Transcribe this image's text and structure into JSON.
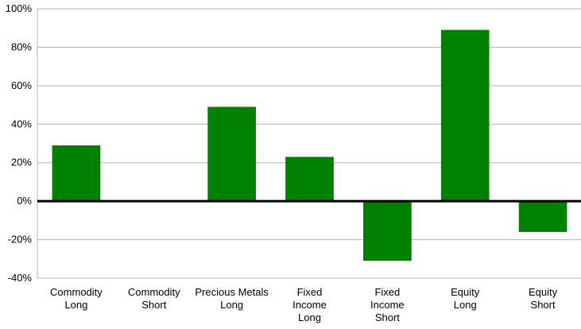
{
  "chart_data": {
    "type": "bar",
    "categories": [
      [
        "Commodity",
        "Long"
      ],
      [
        "Commodity",
        "Short"
      ],
      [
        "Precious Metals",
        "Long"
      ],
      [
        "Fixed",
        "Income",
        "Long"
      ],
      [
        "Fixed",
        "Income",
        "Short"
      ],
      [
        "Equity",
        "Long"
      ],
      [
        "Equity",
        "Short"
      ]
    ],
    "values": [
      29,
      0,
      49,
      23,
      -31,
      89,
      -16
    ],
    "ylim": [
      -40,
      100
    ],
    "yticks": [
      -40,
      -20,
      0,
      20,
      40,
      60,
      80,
      100
    ],
    "ytick_labels": [
      "-40%",
      "-20%",
      "0%",
      "20%",
      "40%",
      "60%",
      "80%",
      "100%"
    ],
    "grid": true,
    "bar_color": "#008000",
    "grid_color": "#b3b3b3",
    "zero_line_color": "#000000",
    "title": "",
    "xlabel": "",
    "ylabel": ""
  }
}
